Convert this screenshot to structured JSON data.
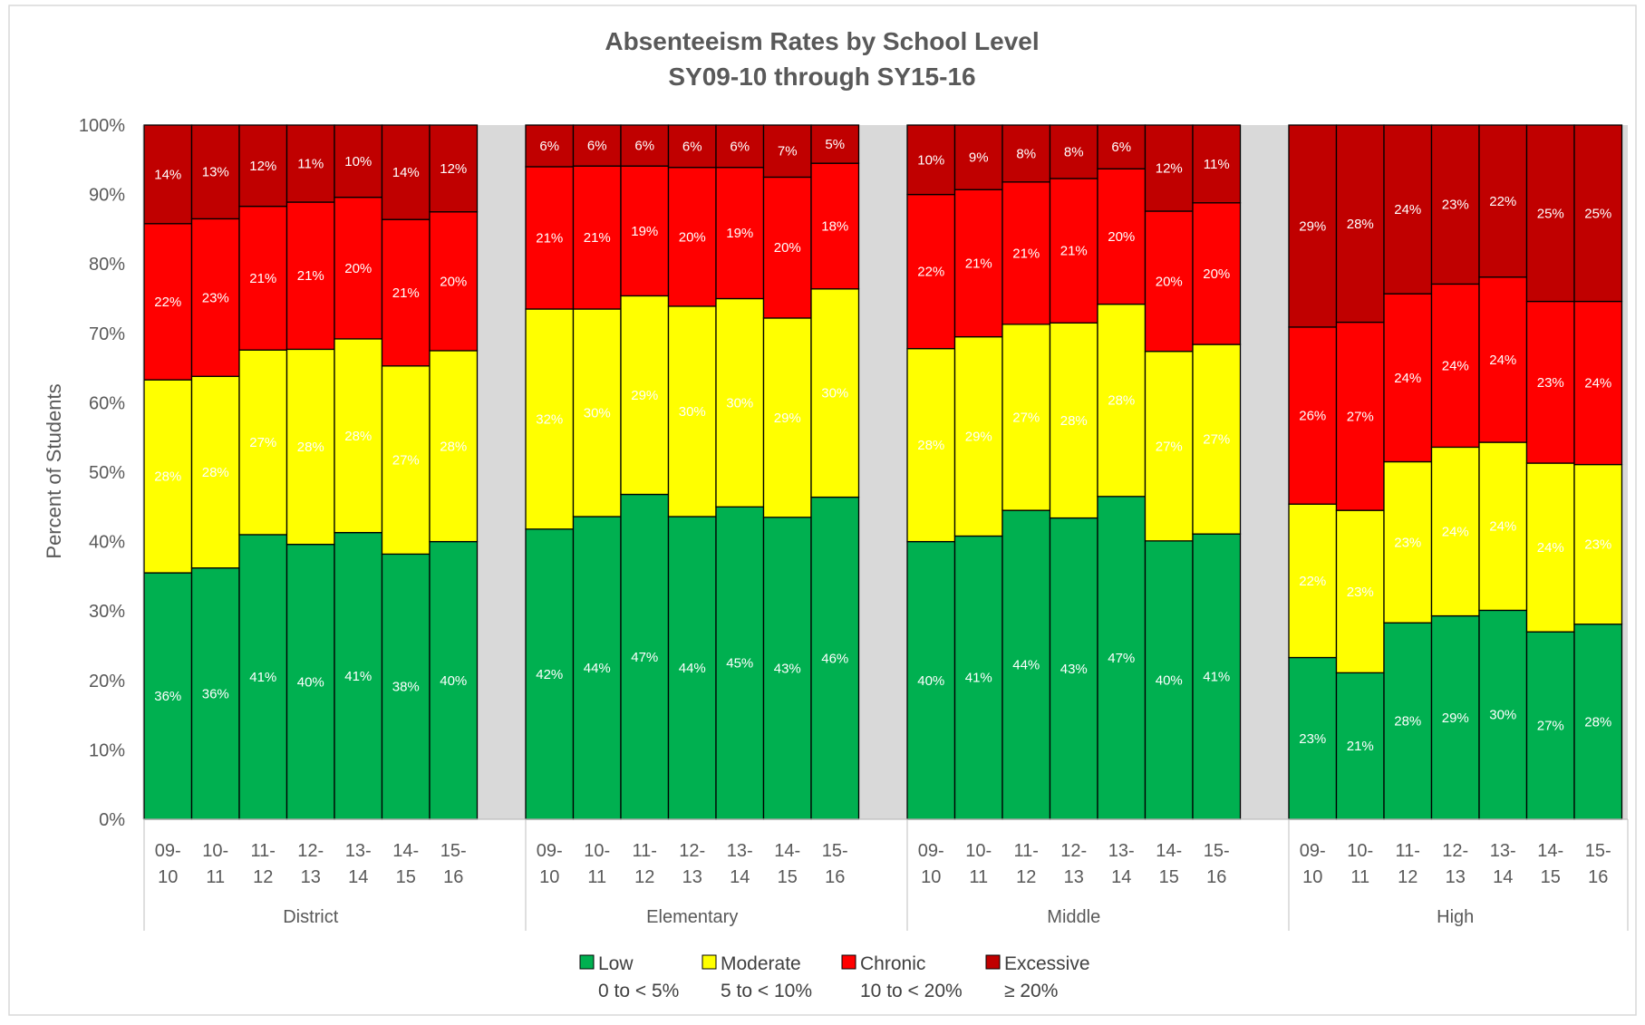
{
  "chart_data": {
    "type": "bar",
    "stacked": true,
    "stack_mode": "percent",
    "title": "Absenteeism Rates by School Level",
    "subtitle": "SY09-10 through SY15-16",
    "ylabel": "Percent of Students",
    "ylim": [
      0,
      100
    ],
    "yticks": [
      "0%",
      "10%",
      "20%",
      "30%",
      "40%",
      "50%",
      "60%",
      "70%",
      "80%",
      "90%",
      "100%"
    ],
    "grid": false,
    "legend_position": "bottom",
    "categories": [
      "09-10",
      "10-11",
      "11-12",
      "12-13",
      "13-14",
      "14-15",
      "15-16"
    ],
    "category_labels": [
      [
        "09-",
        "10"
      ],
      [
        "10-",
        "11"
      ],
      [
        "11-",
        "12"
      ],
      [
        "12-",
        "13"
      ],
      [
        "13-",
        "14"
      ],
      [
        "14-",
        "15"
      ],
      [
        "15-",
        "16"
      ]
    ],
    "series_info": [
      {
        "name": "Low",
        "range": "0 to < 5%",
        "color": "#00b050"
      },
      {
        "name": "Moderate",
        "range": "5 to < 10%",
        "color": "#ffff00"
      },
      {
        "name": "Chronic",
        "range": "10 to < 20%",
        "color": "#ff0000"
      },
      {
        "name": "Excessive",
        "range": "≥ 20%",
        "color": "#c00000"
      }
    ],
    "groups": [
      {
        "name": "District",
        "values": {
          "Low": [
            35.5,
            36.2,
            41.0,
            39.6,
            41.3,
            38.2,
            40.0
          ],
          "Moderate": [
            27.8,
            27.6,
            26.6,
            28.1,
            27.9,
            27.1,
            27.5
          ],
          "Chronic": [
            22.5,
            22.7,
            20.7,
            21.2,
            20.4,
            21.1,
            20.0
          ],
          "Excessive": [
            14.2,
            13.5,
            11.7,
            11.1,
            10.4,
            13.6,
            12.5
          ]
        },
        "labels": {
          "Low": [
            "36%",
            "36%",
            "41%",
            "40%",
            "41%",
            "38%",
            "40%"
          ],
          "Moderate": [
            "28%",
            "28%",
            "27%",
            "28%",
            "28%",
            "27%",
            "28%"
          ],
          "Chronic": [
            "22%",
            "23%",
            "21%",
            "21%",
            "20%",
            "21%",
            "20%"
          ],
          "Excessive": [
            "14%",
            "13%",
            "12%",
            "11%",
            "10%",
            "14%",
            "12%"
          ]
        }
      },
      {
        "name": "Elementary",
        "values": {
          "Low": [
            41.8,
            43.6,
            46.8,
            43.6,
            45.0,
            43.5,
            46.4
          ],
          "Moderate": [
            31.7,
            29.9,
            28.6,
            30.3,
            30.0,
            28.7,
            30.0
          ],
          "Chronic": [
            20.5,
            20.6,
            18.7,
            20.0,
            18.9,
            20.3,
            18.1
          ],
          "Excessive": [
            6.0,
            5.9,
            5.9,
            6.1,
            6.1,
            7.5,
            5.5
          ]
        },
        "labels": {
          "Low": [
            "42%",
            "44%",
            "47%",
            "44%",
            "45%",
            "43%",
            "46%"
          ],
          "Moderate": [
            "32%",
            "30%",
            "29%",
            "30%",
            "30%",
            "29%",
            "30%"
          ],
          "Chronic": [
            "21%",
            "21%",
            "19%",
            "20%",
            "19%",
            "20%",
            "18%"
          ],
          "Excessive": [
            "6%",
            "6%",
            "6%",
            "6%",
            "6%",
            "7%",
            "5%"
          ]
        }
      },
      {
        "name": "Middle",
        "values": {
          "Low": [
            40.0,
            40.8,
            44.5,
            43.4,
            46.5,
            40.1,
            41.1
          ],
          "Moderate": [
            27.8,
            28.7,
            26.8,
            28.1,
            27.7,
            27.3,
            27.3
          ],
          "Chronic": [
            22.2,
            21.2,
            20.5,
            20.8,
            19.5,
            20.2,
            20.4
          ],
          "Excessive": [
            10.0,
            9.3,
            8.2,
            7.7,
            6.3,
            12.4,
            11.2
          ]
        },
        "labels": {
          "Low": [
            "40%",
            "41%",
            "44%",
            "43%",
            "47%",
            "40%",
            "41%"
          ],
          "Moderate": [
            "28%",
            "29%",
            "27%",
            "28%",
            "28%",
            "27%",
            "27%"
          ],
          "Chronic": [
            "22%",
            "21%",
            "21%",
            "21%",
            "20%",
            "20%",
            "20%"
          ],
          "Excessive": [
            "10%",
            "9%",
            "8%",
            "8%",
            "6%",
            "12%",
            "11%"
          ]
        }
      },
      {
        "name": "High",
        "values": {
          "Low": [
            23.3,
            21.1,
            28.3,
            29.3,
            30.1,
            27.0,
            28.1
          ],
          "Moderate": [
            22.1,
            23.4,
            23.2,
            24.3,
            24.2,
            24.3,
            23.0
          ],
          "Chronic": [
            25.5,
            27.1,
            24.2,
            23.5,
            23.8,
            23.3,
            23.5
          ],
          "Excessive": [
            29.1,
            28.4,
            24.3,
            22.9,
            21.9,
            25.4,
            25.4
          ]
        },
        "labels": {
          "Low": [
            "23%",
            "21%",
            "28%",
            "29%",
            "30%",
            "27%",
            "28%"
          ],
          "Moderate": [
            "22%",
            "23%",
            "23%",
            "24%",
            "24%",
            "24%",
            "23%"
          ],
          "Chronic": [
            "26%",
            "27%",
            "24%",
            "24%",
            "24%",
            "23%",
            "24%"
          ],
          "Excessive": [
            "29%",
            "28%",
            "24%",
            "23%",
            "22%",
            "25%",
            "25%"
          ]
        }
      }
    ]
  }
}
